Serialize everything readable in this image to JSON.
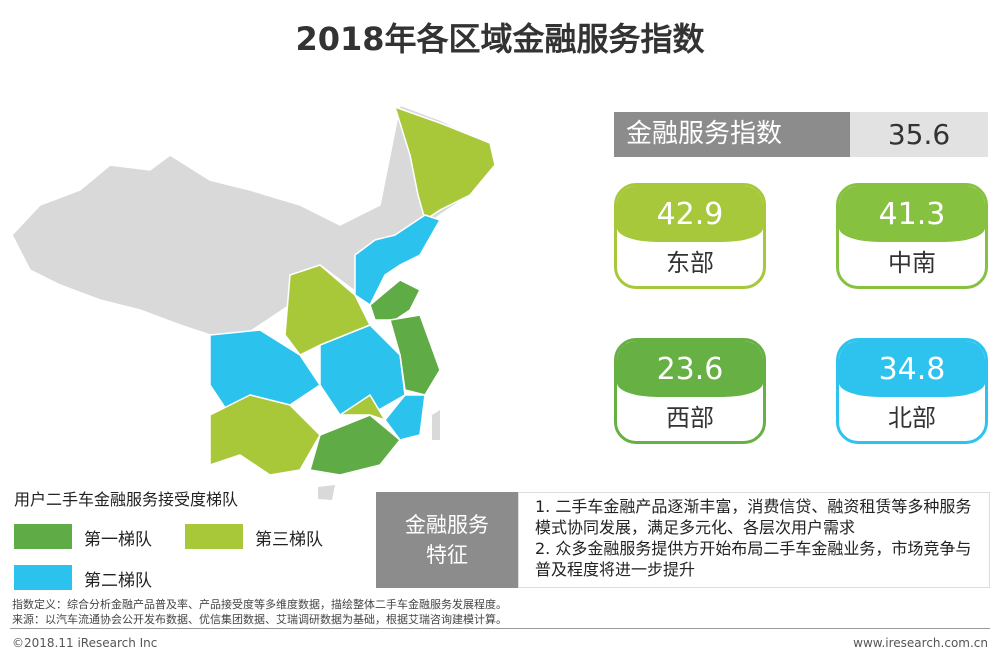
{
  "title": "2018年各区域金融服务指数",
  "index_box": {
    "label": "金融服务指数",
    "value": "35.6"
  },
  "regions": [
    {
      "name": "东部",
      "value": "42.9",
      "color": "#a6c83a"
    },
    {
      "name": "中南",
      "value": "41.3",
      "color": "#86c140"
    },
    {
      "name": "西部",
      "value": "23.6",
      "color": "#66b044"
    },
    {
      "name": "北部",
      "value": "34.8",
      "color": "#2ec3ee"
    }
  ],
  "legend": {
    "title": "用户二手车金融服务接受度梯队",
    "items": [
      {
        "name": "第一梯队",
        "color": "#5fab46"
      },
      {
        "name": "第三梯队",
        "color": "#a8c83a"
      },
      {
        "name": "第二梯队",
        "color": "#2bc3ee"
      }
    ]
  },
  "features": {
    "label": [
      "金融服务",
      "特征"
    ],
    "items": [
      "1. 二手车金融产品逐渐丰富，消费信贷、融资租赁等多种服务模式协同发展，满足多元化、各层次用户需求",
      "2. 众多金融服务提供方开始布局二手车金融业务，市场竞争与普及程度将进一步提升"
    ]
  },
  "notes": [
    "指数定义：综合分析金融产品普及率、产品接受度等多维度数据，描绘整体二手车金融服务发展程度。",
    "来源：以汽车流通协会公开发布数据、优信集团数据、艾瑞调研数据为基础，根据艾瑞咨询建模计算。"
  ],
  "footer": {
    "left": "©2018.11 iResearch Inc",
    "right": "www.iresearch.com.cn"
  }
}
